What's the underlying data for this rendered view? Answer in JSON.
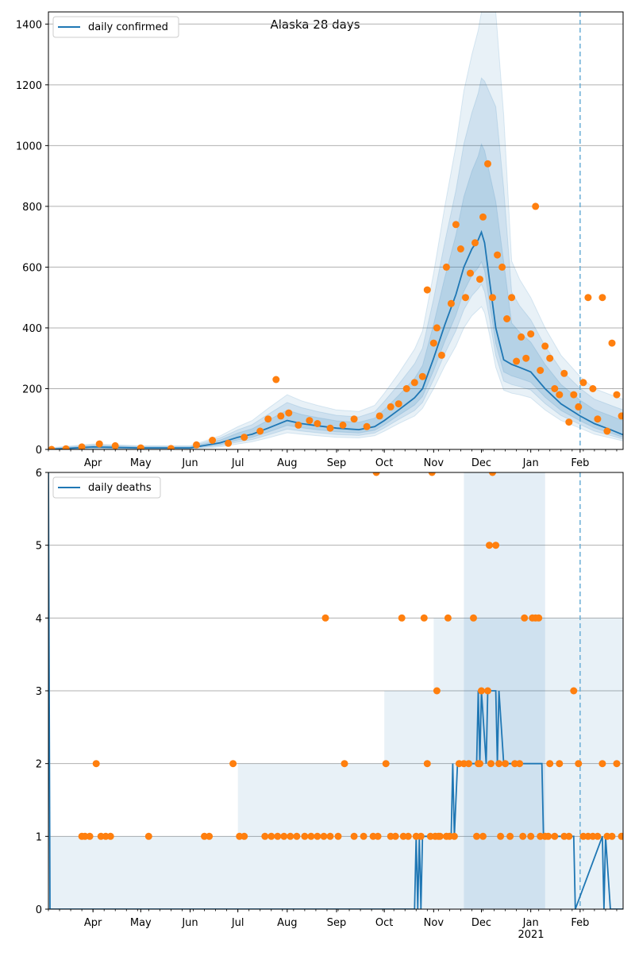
{
  "chart_data": [
    {
      "type": "line",
      "title": "Alaska 28 days",
      "xlabel": "",
      "ylabel": "",
      "ylim": [
        0,
        1440
      ],
      "yticks": [
        0,
        200,
        400,
        600,
        800,
        1000,
        1200,
        1400
      ],
      "xlim": [
        "2020-03-04",
        "2021-02-28"
      ],
      "x_ticks": [
        {
          "date": "2020-04-01",
          "label": "Apr"
        },
        {
          "date": "2020-05-01",
          "label": "May"
        },
        {
          "date": "2020-06-01",
          "label": "Jun"
        },
        {
          "date": "2020-07-01",
          "label": "Jul"
        },
        {
          "date": "2020-08-01",
          "label": "Aug"
        },
        {
          "date": "2020-09-01",
          "label": "Sep"
        },
        {
          "date": "2020-10-01",
          "label": "Oct"
        },
        {
          "date": "2020-11-01",
          "label": "Nov"
        },
        {
          "date": "2020-12-01",
          "label": "Dec"
        },
        {
          "date": "2021-01-01",
          "label": "Jan"
        },
        {
          "date": "2021-02-01",
          "label": "Feb"
        }
      ],
      "year_label": "2021",
      "grid": "horizontal",
      "legend_position": "top-left",
      "forecast_start": "2021-02-01",
      "series": [
        {
          "name": "daily confirmed",
          "color": "#1f77b4",
          "x": [
            "2020-03-04",
            "2020-04-01",
            "2020-05-01",
            "2020-06-01",
            "2020-06-20",
            "2020-07-01",
            "2020-07-10",
            "2020-07-20",
            "2020-08-01",
            "2020-08-10",
            "2020-08-20",
            "2020-09-01",
            "2020-09-15",
            "2020-09-25",
            "2020-10-01",
            "2020-10-10",
            "2020-10-20",
            "2020-10-25",
            "2020-11-01",
            "2020-11-08",
            "2020-11-15",
            "2020-11-20",
            "2020-11-25",
            "2020-11-29",
            "2020-12-01",
            "2020-12-03",
            "2020-12-06",
            "2020-12-10",
            "2020-12-15",
            "2020-12-20",
            "2020-12-25",
            "2021-01-01",
            "2021-01-10",
            "2021-01-20",
            "2021-02-01",
            "2021-02-10",
            "2021-02-20",
            "2021-02-28"
          ],
          "values": [
            0,
            8,
            5,
            5,
            22,
            40,
            50,
            70,
            95,
            85,
            78,
            70,
            65,
            75,
            95,
            130,
            170,
            200,
            300,
            410,
            510,
            600,
            660,
            690,
            715,
            680,
            560,
            400,
            295,
            280,
            270,
            255,
            200,
            150,
            110,
            85,
            65,
            48
          ]
        },
        {
          "name": "",
          "color": "#1f77b4",
          "type": "band",
          "x": [
            "2020-03-04",
            "2020-04-01",
            "2020-05-01",
            "2020-06-01",
            "2020-06-20",
            "2020-07-01",
            "2020-07-10",
            "2020-07-20",
            "2020-08-01",
            "2020-08-10",
            "2020-08-20",
            "2020-09-01",
            "2020-09-15",
            "2020-09-25",
            "2020-10-01",
            "2020-10-10",
            "2020-10-20",
            "2020-10-25",
            "2020-11-01",
            "2020-11-08",
            "2020-11-15",
            "2020-11-20",
            "2020-11-25",
            "2020-11-29",
            "2020-12-01",
            "2020-12-03",
            "2020-12-06",
            "2020-12-10",
            "2020-12-15",
            "2020-12-20",
            "2020-12-25",
            "2021-01-01",
            "2021-01-10",
            "2021-01-20",
            "2021-02-01",
            "2021-02-10",
            "2021-02-20",
            "2021-02-28"
          ],
          "lower": [
            0,
            2,
            2,
            2,
            8,
            18,
            25,
            38,
            55,
            50,
            45,
            40,
            38,
            45,
            60,
            85,
            110,
            135,
            200,
            275,
            340,
            400,
            440,
            460,
            470,
            450,
            380,
            270,
            195,
            185,
            180,
            170,
            130,
            95,
            70,
            50,
            38,
            28
          ],
          "upper": [
            5,
            18,
            12,
            12,
            45,
            75,
            95,
            135,
            180,
            160,
            145,
            130,
            125,
            145,
            185,
            250,
            330,
            390,
            580,
            800,
            1000,
            1180,
            1300,
            1380,
            1440,
            1440,
            1440,
            1440,
            1100,
            620,
            560,
            500,
            400,
            310,
            240,
            200,
            180,
            165
          ]
        },
        {
          "name": "",
          "color": "#ff7f0e",
          "type": "scatter",
          "x": [
            "2020-03-06",
            "2020-03-15",
            "2020-03-25",
            "2020-04-05",
            "2020-04-15",
            "2020-05-01",
            "2020-05-20",
            "2020-06-05",
            "2020-06-15",
            "2020-06-25",
            "2020-07-05",
            "2020-07-15",
            "2020-07-20",
            "2020-07-25",
            "2020-07-28",
            "2020-08-02",
            "2020-08-08",
            "2020-08-15",
            "2020-08-20",
            "2020-08-28",
            "2020-09-05",
            "2020-09-12",
            "2020-09-20",
            "2020-09-28",
            "2020-10-05",
            "2020-10-10",
            "2020-10-15",
            "2020-10-20",
            "2020-10-25",
            "2020-10-28",
            "2020-11-01",
            "2020-11-03",
            "2020-11-06",
            "2020-11-09",
            "2020-11-12",
            "2020-11-15",
            "2020-11-18",
            "2020-11-21",
            "2020-11-24",
            "2020-11-27",
            "2020-11-30",
            "2020-12-02",
            "2020-12-05",
            "2020-12-08",
            "2020-12-11",
            "2020-12-14",
            "2020-12-17",
            "2020-12-20",
            "2020-12-23",
            "2020-12-26",
            "2020-12-29",
            "2021-01-01",
            "2021-01-04",
            "2021-01-07",
            "2021-01-10",
            "2021-01-13",
            "2021-01-16",
            "2021-01-19",
            "2021-01-22",
            "2021-01-25",
            "2021-01-28",
            "2021-01-31",
            "2021-02-03",
            "2021-02-06",
            "2021-02-09",
            "2021-02-12",
            "2021-02-15",
            "2021-02-18",
            "2021-02-21",
            "2021-02-24",
            "2021-02-27"
          ],
          "values": [
            0,
            2,
            8,
            18,
            12,
            5,
            3,
            15,
            30,
            20,
            40,
            60,
            100,
            230,
            110,
            120,
            80,
            95,
            85,
            70,
            80,
            100,
            75,
            110,
            140,
            150,
            200,
            220,
            240,
            525,
            350,
            400,
            310,
            600,
            480,
            740,
            660,
            500,
            580,
            680,
            560,
            765,
            940,
            500,
            640,
            600,
            430,
            500,
            290,
            370,
            300,
            380,
            800,
            260,
            340,
            300,
            200,
            180,
            250,
            90,
            180,
            140,
            220,
            500,
            200,
            100,
            500,
            60,
            350,
            180,
            110
          ]
        }
      ],
      "legend": [
        "daily confirmed"
      ]
    },
    {
      "type": "line",
      "title": "",
      "xlabel": "",
      "ylabel": "",
      "ylim": [
        0,
        6
      ],
      "yticks": [
        0,
        1,
        2,
        3,
        4,
        5,
        6
      ],
      "xlim": [
        "2020-03-04",
        "2021-02-28"
      ],
      "x_ticks": [
        {
          "date": "2020-04-01",
          "label": "Apr"
        },
        {
          "date": "2020-05-01",
          "label": "May"
        },
        {
          "date": "2020-06-01",
          "label": "Jun"
        },
        {
          "date": "2020-07-01",
          "label": "Jul"
        },
        {
          "date": "2020-08-01",
          "label": "Aug"
        },
        {
          "date": "2020-09-01",
          "label": "Sep"
        },
        {
          "date": "2020-10-01",
          "label": "Oct"
        },
        {
          "date": "2020-11-01",
          "label": "Nov"
        },
        {
          "date": "2020-12-01",
          "label": "Dec"
        },
        {
          "date": "2021-01-01",
          "label": "Jan"
        },
        {
          "date": "2021-02-01",
          "label": "Feb"
        }
      ],
      "year_label": "2021",
      "grid": "horizontal",
      "legend_position": "top-left",
      "forecast_start": "2021-02-01",
      "series": [
        {
          "name": "daily deaths",
          "color": "#1f77b4",
          "x": [
            "2020-03-04",
            "2020-03-05",
            "2020-10-20",
            "2020-10-21",
            "2020-10-22",
            "2020-10-23",
            "2020-10-24",
            "2020-10-25",
            "2020-11-12",
            "2020-11-13",
            "2020-11-14",
            "2020-11-16",
            "2020-11-17",
            "2020-11-18",
            "2020-11-28",
            "2020-11-29",
            "2020-11-30",
            "2020-12-01",
            "2020-12-04",
            "2020-12-05",
            "2020-12-06",
            "2020-12-10",
            "2020-12-11",
            "2020-12-12",
            "2020-12-15",
            "2020-12-16",
            "2021-01-08",
            "2021-01-09",
            "2021-01-28",
            "2021-01-29",
            "2021-02-15",
            "2021-02-16",
            "2021-02-17",
            "2021-02-20",
            "2021-02-28"
          ],
          "values": [
            6,
            0,
            0,
            1,
            0,
            1,
            0,
            1,
            1,
            2,
            1,
            2,
            2,
            2,
            2,
            3,
            2,
            3,
            2,
            3,
            3,
            3,
            2,
            3,
            2,
            2,
            2,
            1,
            1,
            0,
            1,
            0,
            1,
            0,
            0
          ]
        },
        {
          "name": "",
          "color": "#ff7f0e",
          "type": "scatter",
          "x": [
            "2020-03-25",
            "2020-03-27",
            "2020-03-30",
            "2020-04-03",
            "2020-04-06",
            "2020-04-09",
            "2020-04-12",
            "2020-05-06",
            "2020-06-10",
            "2020-06-13",
            "2020-06-28",
            "2020-07-02",
            "2020-07-05",
            "2020-07-18",
            "2020-07-22",
            "2020-07-26",
            "2020-07-30",
            "2020-08-03",
            "2020-08-07",
            "2020-08-12",
            "2020-08-16",
            "2020-08-20",
            "2020-08-24",
            "2020-08-28",
            "2020-09-02",
            "2020-09-06",
            "2020-09-12",
            "2020-09-18",
            "2020-09-24",
            "2020-09-27",
            "2020-10-02",
            "2020-10-05",
            "2020-10-08",
            "2020-10-13",
            "2020-10-16",
            "2020-10-21",
            "2020-10-24",
            "2020-10-26",
            "2020-10-30",
            "2020-11-02",
            "2020-11-05",
            "2020-11-09",
            "2020-11-11",
            "2020-11-14",
            "2020-11-17",
            "2020-11-20",
            "2020-11-23",
            "2020-11-26",
            "2020-11-28",
            "2020-11-30",
            "2020-12-02",
            "2020-12-05",
            "2020-12-07",
            "2020-12-10",
            "2020-12-13",
            "2020-12-16",
            "2020-12-19",
            "2020-12-22",
            "2020-12-25",
            "2020-12-28",
            "2021-01-01",
            "2021-01-04",
            "2021-01-07",
            "2021-01-10",
            "2021-01-13",
            "2021-01-16",
            "2021-01-19",
            "2021-01-22",
            "2021-01-25",
            "2021-01-28",
            "2021-01-31",
            "2021-02-03",
            "2021-02-06",
            "2021-02-09",
            "2021-02-12",
            "2021-02-15",
            "2021-02-18",
            "2021-02-21",
            "2021-02-24",
            "2021-02-27",
            "2020-08-25",
            "2020-09-26",
            "2020-10-12",
            "2020-10-28",
            "2020-10-31",
            "2020-11-03",
            "2020-11-10",
            "2020-11-29",
            "2020-12-08",
            "2020-12-12",
            "2020-12-27",
            "2021-01-02",
            "2021-01-06",
            "2020-12-06",
            "2020-11-04",
            "2020-12-01",
            "2021-01-12"
          ],
          "values": [
            1,
            1,
            1,
            2,
            1,
            1,
            1,
            1,
            1,
            1,
            2,
            1,
            1,
            1,
            1,
            1,
            1,
            1,
            1,
            1,
            1,
            1,
            1,
            1,
            1,
            2,
            1,
            1,
            1,
            1,
            2,
            1,
            1,
            1,
            1,
            1,
            1,
            4,
            1,
            1,
            1,
            1,
            1,
            1,
            2,
            2,
            2,
            4,
            1,
            2,
            1,
            3,
            2,
            5,
            1,
            2,
            1,
            2,
            2,
            4,
            1,
            4,
            1,
            1,
            2,
            1,
            2,
            1,
            1,
            3,
            2,
            1,
            1,
            1,
            1,
            2,
            1,
            1,
            2,
            1,
            4,
            6,
            4,
            2,
            6,
            3,
            4,
            2,
            6,
            2,
            1,
            4,
            4,
            5,
            1,
            3,
            1
          ]
        }
      ],
      "legend": [
        "daily deaths"
      ]
    }
  ]
}
